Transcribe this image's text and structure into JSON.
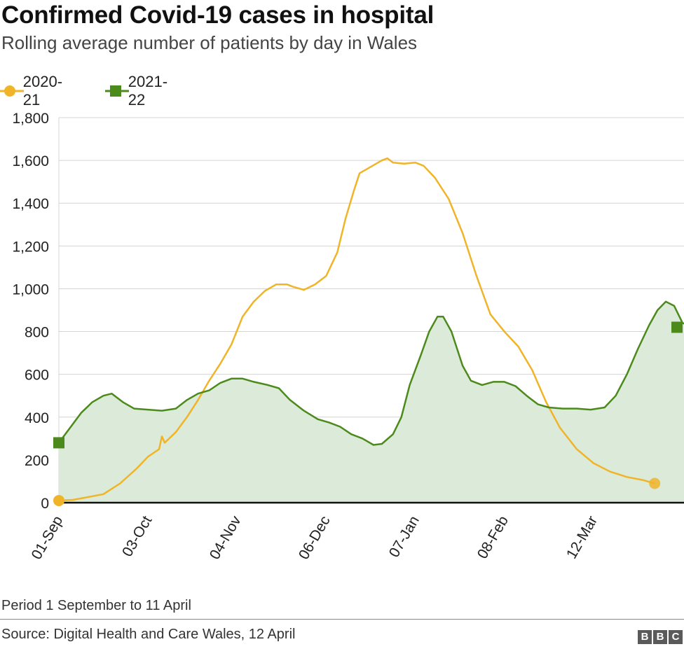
{
  "title": "Confirmed Covid-19 cases in hospital",
  "subtitle": "Rolling average number of patients by day in Wales",
  "footnote": "Period 1 September to 11 April",
  "source": "Source: Digital Health and Care Wales, 12 April",
  "logo": [
    "B",
    "B",
    "C"
  ],
  "colors": {
    "series_2020": "#f0b429",
    "series_2021": "#4b8a1b",
    "area_2021": "#dcebd9",
    "grid": "#d4d4d4",
    "axis": "#111111"
  },
  "chart_data": {
    "type": "line",
    "title": "Confirmed Covid-19 cases in hospital",
    "xlabel": "",
    "ylabel": "",
    "ylim": [
      0,
      1800
    ],
    "yticks": [
      0,
      200,
      400,
      600,
      800,
      1000,
      1200,
      1400,
      1600,
      1800
    ],
    "ytick_labels": [
      "0",
      "200",
      "400",
      "600",
      "800",
      "1,000",
      "1,200",
      "1,400",
      "1,600",
      "1,800"
    ],
    "xlim": [
      0,
      222
    ],
    "xticks": [
      0,
      32,
      64,
      96,
      128,
      160,
      192
    ],
    "xtick_labels": [
      "01-Sep",
      "03-Oct",
      "04-Nov",
      "06-Dec",
      "07-Jan",
      "08-Feb",
      "12-Mar"
    ],
    "legend_position": "top-left",
    "series": [
      {
        "name": "2020-21",
        "marker": "circle",
        "filled_area": false,
        "points": [
          [
            0,
            10
          ],
          [
            5,
            13
          ],
          [
            10,
            25
          ],
          [
            16,
            40
          ],
          [
            22,
            90
          ],
          [
            28,
            160
          ],
          [
            32,
            215
          ],
          [
            36,
            250
          ],
          [
            37,
            310
          ],
          [
            38,
            280
          ],
          [
            42,
            330
          ],
          [
            46,
            400
          ],
          [
            50,
            480
          ],
          [
            54,
            570
          ],
          [
            58,
            650
          ],
          [
            62,
            740
          ],
          [
            66,
            870
          ],
          [
            70,
            940
          ],
          [
            74,
            990
          ],
          [
            78,
            1020
          ],
          [
            82,
            1020
          ],
          [
            84,
            1010
          ],
          [
            88,
            995
          ],
          [
            92,
            1020
          ],
          [
            96,
            1060
          ],
          [
            100,
            1170
          ],
          [
            103,
            1330
          ],
          [
            106,
            1460
          ],
          [
            108,
            1540
          ],
          [
            112,
            1570
          ],
          [
            116,
            1600
          ],
          [
            118,
            1610
          ],
          [
            120,
            1590
          ],
          [
            124,
            1585
          ],
          [
            128,
            1590
          ],
          [
            131,
            1575
          ],
          [
            135,
            1520
          ],
          [
            140,
            1420
          ],
          [
            145,
            1260
          ],
          [
            150,
            1060
          ],
          [
            155,
            880
          ],
          [
            160,
            800
          ],
          [
            165,
            730
          ],
          [
            170,
            620
          ],
          [
            175,
            470
          ],
          [
            180,
            350
          ],
          [
            186,
            250
          ],
          [
            192,
            185
          ],
          [
            198,
            145
          ],
          [
            204,
            120
          ],
          [
            210,
            105
          ],
          [
            214,
            90
          ]
        ]
      },
      {
        "name": "2021-22",
        "marker": "square",
        "filled_area": true,
        "points": [
          [
            0,
            280
          ],
          [
            4,
            350
          ],
          [
            8,
            420
          ],
          [
            12,
            470
          ],
          [
            16,
            500
          ],
          [
            19,
            510
          ],
          [
            23,
            470
          ],
          [
            27,
            440
          ],
          [
            32,
            435
          ],
          [
            37,
            430
          ],
          [
            42,
            440
          ],
          [
            46,
            480
          ],
          [
            50,
            510
          ],
          [
            54,
            525
          ],
          [
            58,
            560
          ],
          [
            62,
            580
          ],
          [
            66,
            580
          ],
          [
            70,
            565
          ],
          [
            75,
            550
          ],
          [
            79,
            535
          ],
          [
            83,
            480
          ],
          [
            88,
            430
          ],
          [
            93,
            390
          ],
          [
            97,
            375
          ],
          [
            101,
            355
          ],
          [
            105,
            320
          ],
          [
            109,
            300
          ],
          [
            113,
            270
          ],
          [
            116,
            275
          ],
          [
            120,
            320
          ],
          [
            123,
            400
          ],
          [
            126,
            550
          ],
          [
            130,
            690
          ],
          [
            133,
            800
          ],
          [
            136,
            870
          ],
          [
            138,
            870
          ],
          [
            141,
            800
          ],
          [
            145,
            640
          ],
          [
            148,
            570
          ],
          [
            152,
            550
          ],
          [
            156,
            565
          ],
          [
            160,
            565
          ],
          [
            164,
            545
          ],
          [
            168,
            500
          ],
          [
            172,
            460
          ],
          [
            176,
            445
          ],
          [
            181,
            440
          ],
          [
            186,
            440
          ],
          [
            191,
            435
          ],
          [
            196,
            445
          ],
          [
            200,
            500
          ],
          [
            204,
            600
          ],
          [
            208,
            720
          ],
          [
            212,
            830
          ],
          [
            215,
            900
          ],
          [
            218,
            940
          ],
          [
            221,
            920
          ],
          [
            224,
            840
          ],
          [
            228,
            820
          ]
        ]
      }
    ]
  }
}
